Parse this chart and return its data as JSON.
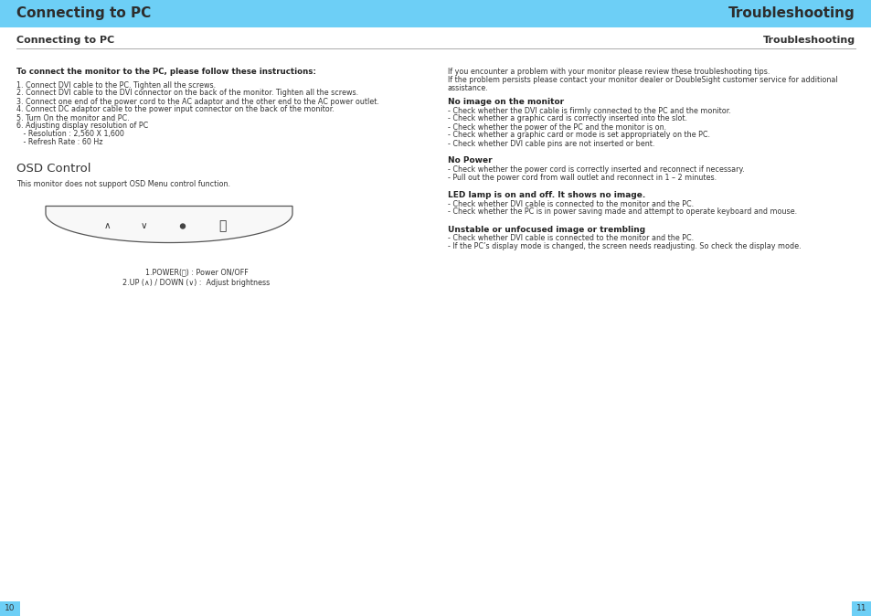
{
  "bg_color": "#ffffff",
  "header_bg": "#6dcff6",
  "header_text_color": "#2d2d2d",
  "header_left": "Connecting to PC",
  "header_right": "Troubleshooting",
  "header_fontsize": 11,
  "subheader_left": "Connecting to PC",
  "subheader_right": "Troubleshooting",
  "subheader_fontsize": 8,
  "subheader_line_color": "#aaaaaa",
  "page_left": "10",
  "page_right": "11",
  "page_bg": "#6dcff6",
  "left_bold_title": "To connect the monitor to the PC, please follow these instructions:",
  "left_instructions": [
    "1. Connect DVI cable to the PC. Tighten all the screws.",
    "2. Connect DVI cable to the DVI connector on the back of the monitor. Tighten all the screws.",
    "3. Connect one end of the power cord to the AC adaptor and the other end to the AC power outlet.",
    "4. Connect DC adaptor cable to the power input connector on the back of the monitor.",
    "5. Turn On the monitor and PC.",
    "6. Adjusting display resolution of PC",
    "   - Resolution : 2,560 X 1,600",
    "   - Refresh Rate : 60 Hz"
  ],
  "osd_title": "OSD Control",
  "osd_note": "This monitor does not support OSD Menu control function.",
  "power_label": "1.POWER(⏻) : Power ON/OFF",
  "brightness_label": "2.UP (∧) / DOWN (∨) :  Adjust brightness",
  "right_intro": "If you encounter a problem with your monitor please review these troubleshooting tips.\nIf the problem persists please contact your monitor dealer or DoubleSight customer service for additional\nassistance.",
  "sections": [
    {
      "title": "No image on the monitor",
      "items": [
        "- Check whether the DVI cable is firmly connected to the PC and the monitor.",
        "- Check whether a graphic card is correctly inserted into the slot.",
        "- Check whether the power of the PC and the monitor is on.",
        "- Check whether a graphic card or mode is set appropriately on the PC.",
        "- Check whether DVI cable pins are not inserted or bent."
      ]
    },
    {
      "title": "No Power",
      "items": [
        "- Check whether the power cord is correctly inserted and reconnect if necessary.",
        "- Pull out the power cord from wall outlet and reconnect in 1 – 2 minutes."
      ]
    },
    {
      "title": "LED lamp is on and off. It shows no image.",
      "items": [
        "- Check whether DVI cable is connected to the monitor and the PC.",
        "- Check whether the PC is in power saving made and attempt to operate keyboard and mouse."
      ]
    },
    {
      "title": "Unstable or unfocused image or trembling",
      "items": [
        "- Check whether DVI cable is connected to the monitor and the PC.",
        "- If the PC’s display mode is changed, the screen needs readjusting. So check the display mode."
      ]
    }
  ]
}
